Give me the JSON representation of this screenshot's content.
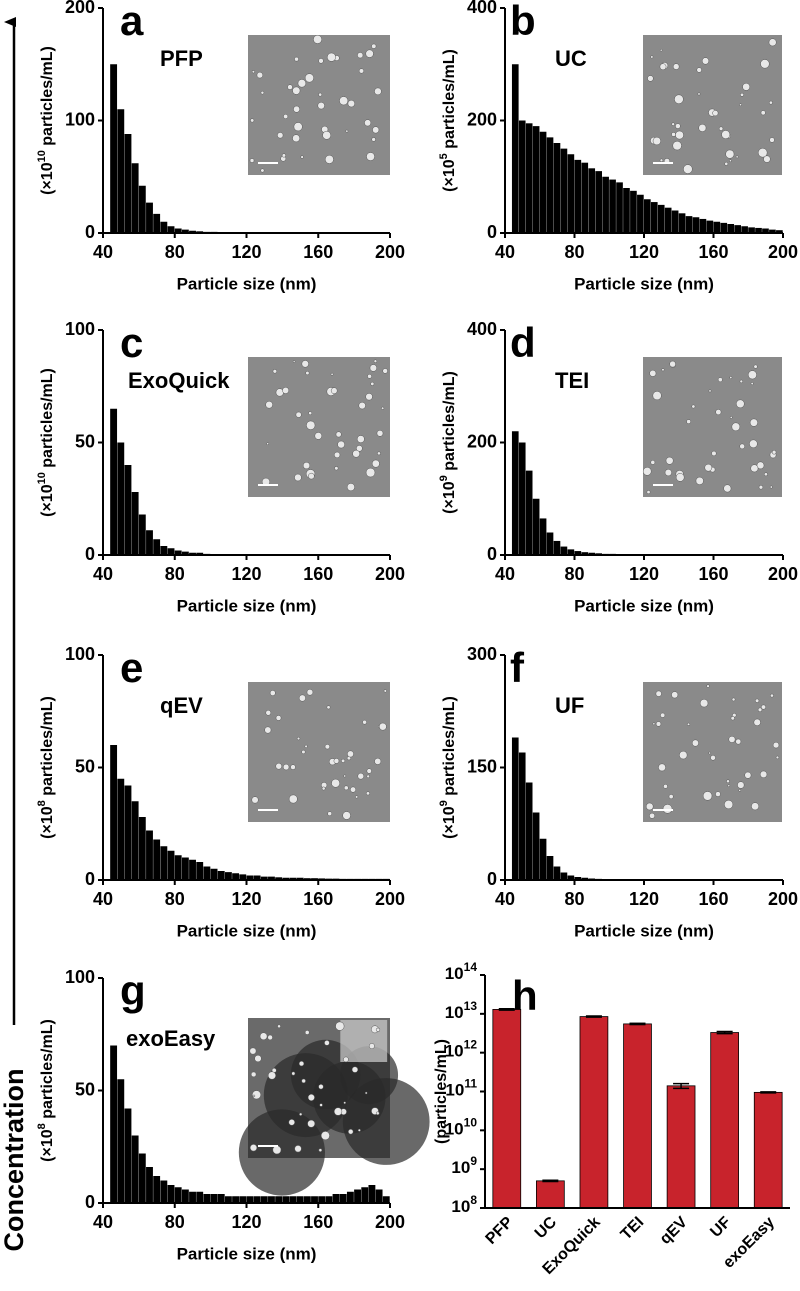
{
  "axis_label": "Concentration",
  "chart_data": [
    {
      "type": "histogram",
      "letter": "a",
      "label": "PFP",
      "ylabel": [
        "(×10",
        "10",
        " particles/mL)"
      ],
      "xlabel": "Particle size (nm)",
      "bins": [
        44,
        48,
        52,
        56,
        60,
        64,
        68,
        72,
        76,
        80,
        84,
        88,
        92,
        96,
        100,
        104,
        108,
        112,
        116,
        120,
        124,
        128,
        132,
        136,
        140,
        144,
        148,
        152,
        156,
        160,
        164,
        168,
        172,
        176,
        180,
        184,
        188,
        192,
        196,
        200
      ],
      "values": [
        150,
        110,
        88,
        62,
        42,
        27,
        17,
        10,
        6,
        4,
        3,
        2,
        1.5,
        1,
        1,
        0.5,
        0.5,
        0.5,
        0.5,
        0.5,
        0.5,
        0.5,
        0.5,
        0.5,
        0.5,
        0.5,
        0.5,
        0.5,
        0.5,
        0.5,
        0.5,
        0.5,
        0.5,
        0.5,
        0.5,
        0.5,
        0.5,
        0.5,
        0.5
      ],
      "color": "#000000",
      "xlim": [
        40,
        200
      ],
      "xticks": [
        40,
        80,
        120,
        160,
        200
      ],
      "ylim": [
        0,
        200
      ],
      "yticks": [
        0,
        100,
        200
      ]
    },
    {
      "type": "histogram",
      "letter": "b",
      "label": "UC",
      "ylabel": [
        "(×10",
        "5",
        " particles/mL)"
      ],
      "xlabel": "Particle size (nm)",
      "bins": [
        44,
        48,
        52,
        56,
        60,
        64,
        68,
        72,
        76,
        80,
        84,
        88,
        92,
        96,
        100,
        104,
        108,
        112,
        116,
        120,
        124,
        128,
        132,
        136,
        140,
        144,
        148,
        152,
        156,
        160,
        164,
        168,
        172,
        176,
        180,
        184,
        188,
        192,
        196,
        200
      ],
      "values": [
        300,
        200,
        195,
        190,
        180,
        170,
        160,
        150,
        140,
        130,
        125,
        115,
        110,
        100,
        95,
        90,
        80,
        75,
        68,
        60,
        55,
        50,
        45,
        40,
        35,
        30,
        28,
        25,
        22,
        20,
        18,
        16,
        14,
        12,
        10,
        9,
        8,
        6,
        5
      ],
      "color": "#000000",
      "xlim": [
        40,
        200
      ],
      "xticks": [
        40,
        80,
        120,
        160,
        200
      ],
      "ylim": [
        0,
        400
      ],
      "yticks": [
        0,
        200,
        400
      ]
    },
    {
      "type": "histogram",
      "letter": "c",
      "label": "ExoQuick",
      "ylabel": [
        "(×10",
        "10",
        " particles/mL)"
      ],
      "xlabel": "Particle size (nm)",
      "bins": [
        44,
        48,
        52,
        56,
        60,
        64,
        68,
        72,
        76,
        80,
        84,
        88,
        92,
        96,
        100,
        104,
        108,
        112,
        116,
        120,
        124,
        128,
        132,
        136,
        140,
        144,
        148,
        152,
        156,
        160,
        164,
        168,
        172,
        176,
        180,
        184,
        188,
        192,
        196,
        200
      ],
      "values": [
        65,
        50,
        40,
        28,
        18,
        11,
        7,
        4,
        3,
        2,
        1.5,
        1,
        1,
        0.5,
        0.3,
        0.3,
        0.3,
        0.3,
        0.3,
        0.3,
        0.3,
        0.3,
        0.3,
        0.3,
        0.3,
        0.3,
        0.3,
        0.3,
        0.3,
        0.3,
        0.3,
        0.3,
        0.3,
        0.3,
        0.3,
        0.3,
        0.3,
        0.3,
        0.3
      ],
      "color": "#000000",
      "xlim": [
        40,
        200
      ],
      "xticks": [
        40,
        80,
        120,
        160,
        200
      ],
      "ylim": [
        0,
        100
      ],
      "yticks": [
        0,
        50,
        100
      ]
    },
    {
      "type": "histogram",
      "letter": "d",
      "label": "TEI",
      "ylabel": [
        "(×10",
        "9",
        " particles/mL)"
      ],
      "xlabel": "Particle size (nm)",
      "bins": [
        44,
        48,
        52,
        56,
        60,
        64,
        68,
        72,
        76,
        80,
        84,
        88,
        92,
        96,
        100,
        104,
        108,
        112,
        116,
        120,
        124,
        128,
        132,
        136,
        140,
        144,
        148,
        152,
        156,
        160,
        164,
        168,
        172,
        176,
        180,
        184,
        188,
        192,
        196,
        200
      ],
      "values": [
        220,
        200,
        150,
        100,
        65,
        40,
        25,
        15,
        10,
        7,
        5,
        4,
        3,
        2,
        2,
        1.5,
        1,
        1,
        1,
        0.5,
        0.5,
        0.5,
        0.5,
        0.5,
        0.5,
        0.5,
        0.5,
        0.5,
        0.5,
        0.5,
        0.5,
        0.5,
        0.5,
        0.5,
        0.5,
        0.5,
        0.5,
        0.5,
        0.5
      ],
      "color": "#000000",
      "xlim": [
        40,
        200
      ],
      "xticks": [
        40,
        80,
        120,
        160,
        200
      ],
      "ylim": [
        0,
        400
      ],
      "yticks": [
        0,
        200,
        400
      ]
    },
    {
      "type": "histogram",
      "letter": "e",
      "label": "qEV",
      "ylabel": [
        "(×10",
        "8",
        " particles/mL)"
      ],
      "xlabel": "Particle size (nm)",
      "bins": [
        44,
        48,
        52,
        56,
        60,
        64,
        68,
        72,
        76,
        80,
        84,
        88,
        92,
        96,
        100,
        104,
        108,
        112,
        116,
        120,
        124,
        128,
        132,
        136,
        140,
        144,
        148,
        152,
        156,
        160,
        164,
        168,
        172,
        176,
        180,
        184,
        188,
        192,
        196,
        200
      ],
      "values": [
        60,
        45,
        42,
        35,
        28,
        22,
        18,
        15,
        13,
        11,
        10,
        9,
        8,
        6,
        5,
        4,
        3.5,
        3,
        2.5,
        2,
        2,
        1.5,
        1.5,
        1.2,
        1,
        1,
        1,
        0.8,
        0.8,
        0.7,
        0.6,
        0.6,
        0.5,
        0.5,
        0.5,
        0.5,
        0.5,
        0.5,
        0.5
      ],
      "color": "#000000",
      "xlim": [
        40,
        200
      ],
      "xticks": [
        40,
        80,
        120,
        160,
        200
      ],
      "ylim": [
        0,
        100
      ],
      "yticks": [
        0,
        50,
        100
      ]
    },
    {
      "type": "histogram",
      "letter": "f",
      "label": "UF",
      "ylabel": [
        "(×10",
        "9",
        " particles/mL)"
      ],
      "xlabel": "Particle size (nm)",
      "bins": [
        44,
        48,
        52,
        56,
        60,
        64,
        68,
        72,
        76,
        80,
        84,
        88,
        92,
        96,
        100,
        104,
        108,
        112,
        116,
        120,
        124,
        128,
        132,
        136,
        140,
        144,
        148,
        152,
        156,
        160,
        164,
        168,
        172,
        176,
        180,
        184,
        188,
        192,
        196,
        200
      ],
      "values": [
        190,
        170,
        130,
        90,
        55,
        32,
        18,
        10,
        6,
        4,
        3,
        2,
        1.5,
        1,
        1,
        0.5,
        0.5,
        0.5,
        0.5,
        0.5,
        0.5,
        0.5,
        0.5,
        0.5,
        0.5,
        0.5,
        0.5,
        0.5,
        0.5,
        0.5,
        0.5,
        0.5,
        0.5,
        0.5,
        0.5,
        0.5,
        0.5,
        0.5,
        0.5
      ],
      "color": "#000000",
      "xlim": [
        40,
        200
      ],
      "xticks": [
        40,
        80,
        120,
        160,
        200
      ],
      "ylim": [
        0,
        300
      ],
      "yticks": [
        0,
        150,
        300
      ]
    },
    {
      "type": "histogram",
      "letter": "g",
      "label": "exoEasy",
      "ylabel": [
        "(×10",
        "8",
        " particles/mL)"
      ],
      "xlabel": "Particle size (nm)",
      "bins": [
        44,
        48,
        52,
        56,
        60,
        64,
        68,
        72,
        76,
        80,
        84,
        88,
        92,
        96,
        100,
        104,
        108,
        112,
        116,
        120,
        124,
        128,
        132,
        136,
        140,
        144,
        148,
        152,
        156,
        160,
        164,
        168,
        172,
        176,
        180,
        184,
        188,
        192,
        196,
        200
      ],
      "values": [
        70,
        55,
        42,
        30,
        22,
        16,
        12,
        10,
        8,
        7,
        6,
        5,
        5,
        4,
        4,
        4,
        3,
        3,
        3,
        3,
        3,
        3,
        3,
        3,
        3,
        3,
        3,
        3,
        3,
        3,
        3,
        4,
        4,
        5,
        6,
        7,
        8,
        6,
        3
      ],
      "color": "#000000",
      "xlim": [
        40,
        200
      ],
      "xticks": [
        40,
        80,
        120,
        160,
        200
      ],
      "ylim": [
        0,
        100
      ],
      "yticks": [
        0,
        50,
        100
      ]
    },
    {
      "type": "bar",
      "letter": "h",
      "ylabel": "(particles/mL)",
      "categories": [
        "PFP",
        "UC",
        "ExoQuick",
        "TEI",
        "qEV",
        "UF",
        "exoEasy"
      ],
      "values": [
        13000000000000.0,
        500000000.0,
        8500000000000.0,
        5500000000000.0,
        140000000000.0,
        3300000000000.0,
        95000000000.0
      ],
      "errors": [
        500000000000.0,
        20000000.0,
        300000000000.0,
        200000000000.0,
        20000000000.0,
        200000000000.0,
        3000000000.0
      ],
      "color": "#c8232c",
      "log_scale": true,
      "ylim": [
        100000000.0,
        100000000000000.0
      ],
      "yticks": [
        {
          "value": 100000000.0,
          "label": "10",
          "exponent": "8"
        },
        {
          "value": 1000000000.0,
          "label": "10",
          "exponent": "9"
        },
        {
          "value": 10000000000.0,
          "label": "10",
          "exponent": "10"
        },
        {
          "value": 100000000000.0,
          "label": "10",
          "exponent": "11"
        },
        {
          "value": 1000000000000.0,
          "label": "10",
          "exponent": "12"
        },
        {
          "value": 10000000000000.0,
          "label": "10",
          "exponent": "13"
        },
        {
          "value": 100000000000000.0,
          "label": "10",
          "exponent": "14"
        }
      ]
    }
  ]
}
